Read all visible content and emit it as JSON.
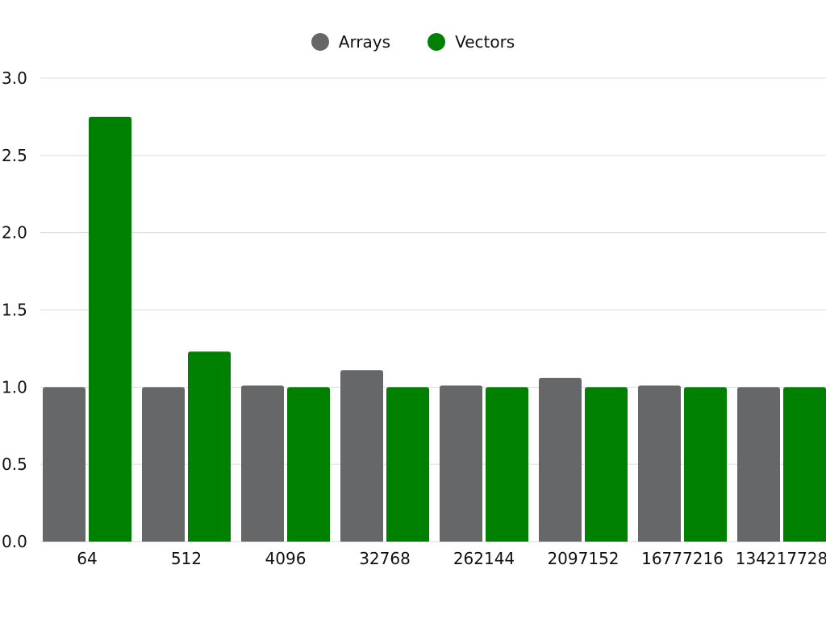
{
  "chart_data": {
    "type": "bar",
    "categories": [
      "64",
      "512",
      "4096",
      "32768",
      "262144",
      "2097152",
      "16777216",
      "134217728"
    ],
    "series": [
      {
        "name": "Arrays",
        "color": "#666769",
        "values": [
          1.0,
          1.0,
          1.01,
          1.11,
          1.01,
          1.06,
          1.01,
          1.0
        ]
      },
      {
        "name": "Vectors",
        "color": "#008000",
        "values": [
          2.75,
          1.23,
          1.0,
          1.0,
          1.0,
          1.0,
          1.0,
          1.0
        ]
      }
    ],
    "ylim": [
      0,
      3.0
    ],
    "yticks": [
      "0.0",
      "0.5",
      "1.0",
      "1.5",
      "2.0",
      "2.5",
      "3.0"
    ],
    "grid": true,
    "legend_position": "top-center",
    "title": "",
    "xlabel": "",
    "ylabel": ""
  }
}
